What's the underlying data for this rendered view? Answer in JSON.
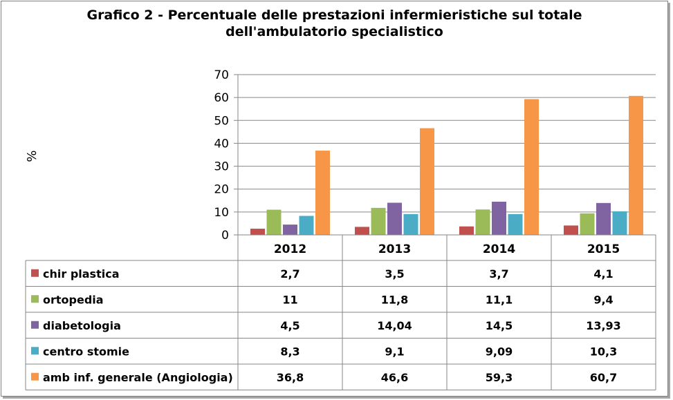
{
  "chart_data": {
    "type": "bar",
    "title": "Grafico 2 - Percentuale delle prestazioni infermieristiche sul totale dell'ambulatorio specialistico",
    "title_lines": [
      "Grafico 2 - Percentuale delle prestazioni infermieristiche sul totale",
      "dell'ambulatorio specialistico"
    ],
    "ylabel": "%",
    "xlabel": "",
    "ylim": [
      0,
      70
    ],
    "yticks": [
      0,
      10,
      20,
      30,
      40,
      50,
      60,
      70
    ],
    "grid": true,
    "categories": [
      "2012",
      "2013",
      "2014",
      "2015"
    ],
    "series": [
      {
        "name": "chir plastica",
        "color": "#c0504d",
        "values": [
          2.7,
          3.5,
          3.7,
          4.1
        ],
        "labels": [
          "2,7",
          "3,5",
          "3,7",
          "4,1"
        ]
      },
      {
        "name": "ortopedia",
        "color": "#9bbb59",
        "values": [
          11,
          11.8,
          11.1,
          9.4
        ],
        "labels": [
          "11",
          "11,8",
          "11,1",
          "9,4"
        ]
      },
      {
        "name": "diabetologia",
        "color": "#8064a2",
        "values": [
          4.5,
          14.04,
          14.5,
          13.93
        ],
        "labels": [
          "4,5",
          "14,04",
          "14,5",
          "13,93"
        ]
      },
      {
        "name": "centro stomie",
        "color": "#4bacc6",
        "values": [
          8.3,
          9.1,
          9.09,
          10.3
        ],
        "labels": [
          "8,3",
          "9,1",
          "9,09",
          "10,3"
        ]
      },
      {
        "name": "amb inf. generale (Angiologia)",
        "color": "#f79646",
        "values": [
          36.8,
          46.6,
          59.3,
          60.7
        ],
        "labels": [
          "36,8",
          "46,6",
          "59,3",
          "60,7"
        ]
      }
    ],
    "legend": "data-table-left"
  }
}
